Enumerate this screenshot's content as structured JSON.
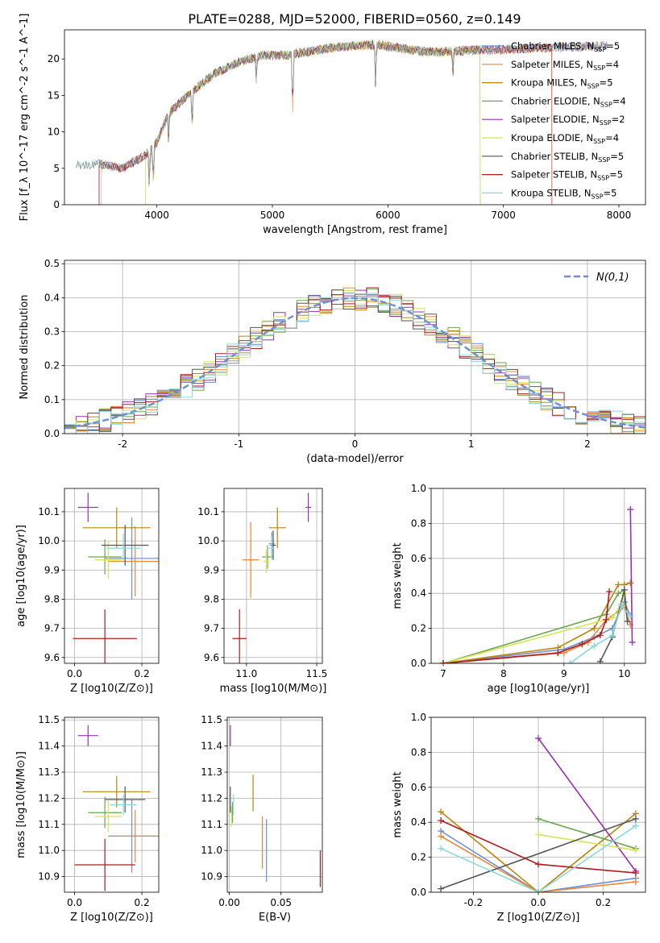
{
  "figure": {
    "title": "PLATE=0288, MJD=52000, FIBERID=0560, z=0.149"
  },
  "models": [
    {
      "name": "Chabrier MILES",
      "nssp": "5",
      "color": "#6b8ed6"
    },
    {
      "name": "Salpeter MILES",
      "nssp": "4",
      "color": "#ee8533"
    },
    {
      "name": "Kroupa MILES",
      "nssp": "5",
      "color": "#b8860b"
    },
    {
      "name": "Chabrier ELODIE",
      "nssp": "4",
      "color": "#6aa84f"
    },
    {
      "name": "Salpeter ELODIE",
      "nssp": "2",
      "color": "#9b30b5"
    },
    {
      "name": "Kroupa ELODIE",
      "nssp": "4",
      "color": "#d7e356"
    },
    {
      "name": "Chabrier STELIB",
      "nssp": "5",
      "color": "#555555"
    },
    {
      "name": "Salpeter STELIB",
      "nssp": "5",
      "color": "#b01c1c"
    },
    {
      "name": "Kroupa STELIB",
      "nssp": "5",
      "color": "#8ad8de"
    }
  ],
  "chart_data": [
    {
      "id": "spectrum",
      "type": "line",
      "xlabel": "wavelength [Angstrom, rest frame]",
      "ylabel": "Flux [f_λ 10^-17 erg cm^-2 s^-1 A^-1]",
      "xlim": [
        3200,
        8230
      ],
      "ylim": [
        0,
        24
      ],
      "xticks": [
        4000,
        5000,
        6000,
        7000,
        8000
      ],
      "yticks": [
        0,
        5,
        10,
        15,
        20
      ],
      "legend": "right",
      "continuum": {
        "x": [
          3300,
          3500,
          3700,
          3900,
          4000,
          4100,
          4300,
          4500,
          4700,
          4900,
          5100,
          5300,
          5500,
          5700,
          5900,
          6100,
          6300,
          6500,
          6700,
          7000,
          7300,
          7500,
          7700,
          7900
        ],
        "y": [
          5.3,
          5.6,
          5.0,
          6.8,
          8.5,
          12.5,
          15.5,
          18.0,
          19.5,
          20.5,
          20.5,
          21.0,
          21.5,
          21.8,
          22.0,
          21.5,
          21.0,
          21.0,
          21.2,
          21.3,
          21.5,
          21.6,
          21.7,
          21.8
        ]
      },
      "absorption": [
        {
          "x": 3934,
          "y": 2.5
        },
        {
          "x": 3969,
          "y": 3.0
        },
        {
          "x": 4101,
          "y": 9.0
        },
        {
          "x": 4305,
          "y": 11.0
        },
        {
          "x": 4861,
          "y": 17.0
        },
        {
          "x": 5176,
          "y": 12.5
        },
        {
          "x": 5893,
          "y": 16.5
        },
        {
          "x": 6563,
          "y": 18.0
        }
      ]
    },
    {
      "id": "residuals",
      "type": "histogram",
      "xlabel": "(data-model)/error",
      "ylabel": "Normed distribution",
      "xlim": [
        -2.5,
        2.5
      ],
      "ylim": [
        0,
        0.51
      ],
      "xticks": [
        -2,
        -1,
        0,
        1,
        2
      ],
      "yticks": [
        0.0,
        0.1,
        0.2,
        0.3,
        0.4,
        0.5
      ],
      "legend": "top-right",
      "reference": {
        "name": "N(0,1)",
        "mean": 0,
        "sigma": 1,
        "color": "#6b8ed6"
      },
      "bin_width": 0.1
    },
    {
      "id": "age_vs_Z",
      "type": "errorbar",
      "xlabel": "Z [log10(Z/Z⊙)]",
      "ylabel": "age [log10(age/yr)]",
      "xlim": [
        -0.03,
        0.25
      ],
      "ylim": [
        9.58,
        10.18
      ],
      "xticks": [
        0.0,
        0.2
      ],
      "yticks": [
        9.6,
        9.7,
        9.8,
        9.9,
        10.0,
        10.1
      ],
      "points": [
        {
          "model": 0,
          "x": 0.17,
          "y": 9.94,
          "xerr": 0.08,
          "yerr": 0.14
        },
        {
          "model": 1,
          "x": 0.18,
          "y": 9.93,
          "xerr": 0.08,
          "yerr": 0.12
        },
        {
          "model": 2,
          "x": 0.125,
          "y": 10.045,
          "xerr": 0.1,
          "yerr": 0.07
        },
        {
          "model": 3,
          "x": 0.09,
          "y": 9.945,
          "xerr": 0.05,
          "yerr": 0.06
        },
        {
          "model": 4,
          "x": 0.04,
          "y": 10.115,
          "xerr": 0.03,
          "yerr": 0.05
        },
        {
          "model": 5,
          "x": 0.1,
          "y": 9.935,
          "xerr": 0.04,
          "yerr": 0.065
        },
        {
          "model": 6,
          "x": 0.15,
          "y": 9.985,
          "xerr": 0.07,
          "yerr": 0.07
        },
        {
          "model": 7,
          "x": 0.09,
          "y": 9.665,
          "xerr": 0.095,
          "yerr": 0.1
        },
        {
          "model": 8,
          "x": 0.145,
          "y": 9.975,
          "xerr": 0.05,
          "yerr": 0.05
        }
      ]
    },
    {
      "id": "age_vs_mass",
      "type": "errorbar",
      "xlabel": "mass [log10(M/M⊙)]",
      "ylabel": "",
      "xlim": [
        10.84,
        11.54
      ],
      "ylim": [
        9.58,
        10.18
      ],
      "xticks": [
        11.0,
        11.5
      ],
      "yticks": [
        9.6,
        9.7,
        9.8,
        9.9,
        10.0,
        10.1
      ],
      "points": [
        {
          "model": 0,
          "x": 11.18,
          "y": 9.99,
          "xerr": 0.02,
          "yerr": 0.04
        },
        {
          "model": 1,
          "x": 11.03,
          "y": 9.935,
          "xerr": 0.06,
          "yerr": 0.13
        },
        {
          "model": 2,
          "x": 11.22,
          "y": 10.045,
          "xerr": 0.06,
          "yerr": 0.07
        },
        {
          "model": 3,
          "x": 11.15,
          "y": 9.945,
          "xerr": 0.04,
          "yerr": 0.04
        },
        {
          "model": 4,
          "x": 11.44,
          "y": 10.115,
          "xerr": 0.02,
          "yerr": 0.05
        },
        {
          "model": 5,
          "x": 11.14,
          "y": 9.93,
          "xerr": 0.02,
          "yerr": 0.04
        },
        {
          "model": 6,
          "x": 11.19,
          "y": 9.985,
          "xerr": 0.02,
          "yerr": 0.05
        },
        {
          "model": 7,
          "x": 10.95,
          "y": 9.665,
          "xerr": 0.05,
          "yerr": 0.1
        },
        {
          "model": 8,
          "x": 11.18,
          "y": 9.975,
          "xerr": 0.02,
          "yerr": 0.04
        }
      ]
    },
    {
      "id": "weight_vs_age",
      "type": "line",
      "xlabel": "age [log10(age/yr)]",
      "ylabel": "mass weight",
      "xlim": [
        6.8,
        10.35
      ],
      "ylim": [
        0,
        1.0
      ],
      "xticks": [
        7,
        8,
        9,
        10
      ],
      "yticks": [
        0.0,
        0.2,
        0.4,
        0.6,
        0.8,
        1.0
      ],
      "series": [
        {
          "model": 0,
          "x": [
            7.0,
            9.0,
            9.5,
            9.8,
            10.0,
            10.1
          ],
          "y": [
            0.0,
            0.08,
            0.15,
            0.2,
            0.35,
            0.27
          ]
        },
        {
          "model": 1,
          "x": [
            7.0,
            9.0,
            9.4,
            9.7,
            10.0,
            10.1
          ],
          "y": [
            0.0,
            0.06,
            0.12,
            0.25,
            0.32,
            0.22
          ]
        },
        {
          "model": 2,
          "x": [
            7.0,
            8.9,
            9.5,
            9.9,
            10.0,
            10.1
          ],
          "y": [
            0.0,
            0.09,
            0.2,
            0.45,
            0.45,
            0.46
          ]
        },
        {
          "model": 3,
          "x": [
            7.0,
            9.7,
            9.9,
            10.0
          ],
          "y": [
            0.0,
            0.28,
            0.4,
            0.42
          ]
        },
        {
          "model": 4,
          "x": [
            10.1,
            10.13
          ],
          "y": [
            0.88,
            0.12
          ]
        },
        {
          "model": 5,
          "x": [
            7.0,
            9.8,
            9.95,
            10.0
          ],
          "y": [
            0.0,
            0.26,
            0.34,
            0.4
          ]
        },
        {
          "model": 6,
          "x": [
            9.6,
            9.8,
            10.0,
            10.05
          ],
          "y": [
            0.01,
            0.15,
            0.42,
            0.24
          ]
        },
        {
          "model": 7,
          "x": [
            7.0,
            8.9,
            9.3,
            9.6,
            9.7,
            9.75
          ],
          "y": [
            0.0,
            0.06,
            0.11,
            0.16,
            0.25,
            0.41
          ]
        },
        {
          "model": 8,
          "x": [
            9.1,
            9.5,
            9.8,
            9.95,
            10.1
          ],
          "y": [
            0.0,
            0.1,
            0.16,
            0.33,
            0.27
          ]
        }
      ]
    },
    {
      "id": "mass_vs_Z",
      "type": "errorbar",
      "xlabel": "Z [log10(Z/Z⊙)]",
      "ylabel": "mass [log10(M/M⊙)]",
      "xlim": [
        -0.03,
        0.25
      ],
      "ylim": [
        10.84,
        11.51
      ],
      "xticks": [
        0.0,
        0.2
      ],
      "yticks": [
        10.9,
        11.0,
        11.1,
        11.2,
        11.3,
        11.4,
        11.5
      ],
      "points": [
        {
          "model": 0,
          "x": 0.17,
          "y": 11.055,
          "xerr": 0.07,
          "yerr": 0.14
        },
        {
          "model": 1,
          "x": 0.18,
          "y": 11.055,
          "xerr": 0.07,
          "yerr": 0.1
        },
        {
          "model": 2,
          "x": 0.125,
          "y": 11.225,
          "xerr": 0.1,
          "yerr": 0.06
        },
        {
          "model": 3,
          "x": 0.09,
          "y": 11.145,
          "xerr": 0.05,
          "yerr": 0.06
        },
        {
          "model": 4,
          "x": 0.04,
          "y": 11.44,
          "xerr": 0.03,
          "yerr": 0.04
        },
        {
          "model": 5,
          "x": 0.1,
          "y": 11.13,
          "xerr": 0.04,
          "yerr": 0.06
        },
        {
          "model": 6,
          "x": 0.15,
          "y": 11.195,
          "xerr": 0.06,
          "yerr": 0.05
        },
        {
          "model": 7,
          "x": 0.09,
          "y": 10.945,
          "xerr": 0.09,
          "yerr": 0.1
        },
        {
          "model": 8,
          "x": 0.145,
          "y": 11.175,
          "xerr": 0.04,
          "yerr": 0.04
        }
      ]
    },
    {
      "id": "mass_vs_ebv",
      "type": "errorbar",
      "xlabel": "E(B-V)",
      "ylabel": "",
      "xlim": [
        -0.002,
        0.09
      ],
      "ylim": [
        10.84,
        11.51
      ],
      "xticks": [
        0.0,
        0.05
      ],
      "yticks": [
        10.9,
        11.0,
        11.1,
        11.2,
        11.3,
        11.4,
        11.5
      ],
      "points": [
        {
          "model": 0,
          "x": 0.036,
          "y": 11.0,
          "xerr": 0,
          "yerr": 0.12
        },
        {
          "model": 1,
          "x": 0.032,
          "y": 11.03,
          "xerr": 0,
          "yerr": 0.1
        },
        {
          "model": 2,
          "x": 0.023,
          "y": 11.22,
          "xerr": 0,
          "yerr": 0.07
        },
        {
          "model": 3,
          "x": 0.003,
          "y": 11.145,
          "xerr": 0,
          "yerr": 0.04
        },
        {
          "model": 4,
          "x": 0.001,
          "y": 11.44,
          "xerr": 0,
          "yerr": 0.04
        },
        {
          "model": 5,
          "x": 0.002,
          "y": 11.13,
          "xerr": 0,
          "yerr": 0.04
        },
        {
          "model": 6,
          "x": 0.001,
          "y": 11.195,
          "xerr": 0,
          "yerr": 0.05
        },
        {
          "model": 7,
          "x": 0.088,
          "y": 10.93,
          "xerr": 0,
          "yerr": 0.07
        },
        {
          "model": 8,
          "x": 0.004,
          "y": 11.175,
          "xerr": 0,
          "yerr": 0.04
        }
      ]
    },
    {
      "id": "weight_vs_Z",
      "type": "line",
      "xlabel": "Z [log10(Z/Z⊙)]",
      "ylabel": "mass weight",
      "xlim": [
        -0.33,
        0.33
      ],
      "ylim": [
        0,
        1.0
      ],
      "xticks": [
        -0.2,
        0.0,
        0.2
      ],
      "yticks": [
        0.0,
        0.2,
        0.4,
        0.6,
        0.8,
        1.0
      ],
      "series": [
        {
          "model": 0,
          "x": [
            -0.3,
            0.0,
            0.3
          ],
          "y": [
            0.35,
            0.0,
            0.08
          ]
        },
        {
          "model": 1,
          "x": [
            -0.3,
            0.0,
            0.3
          ],
          "y": [
            0.32,
            0.0,
            0.06
          ]
        },
        {
          "model": 2,
          "x": [
            -0.3,
            0.0,
            0.3
          ],
          "y": [
            0.46,
            0.0,
            0.45
          ]
        },
        {
          "model": 3,
          "x": [
            0.0,
            0.3
          ],
          "y": [
            0.42,
            0.25
          ]
        },
        {
          "model": 4,
          "x": [
            0.0,
            0.3
          ],
          "y": [
            0.88,
            0.12
          ]
        },
        {
          "model": 5,
          "x": [
            0.0,
            0.3
          ],
          "y": [
            0.33,
            0.24
          ]
        },
        {
          "model": 6,
          "x": [
            -0.3,
            0.3
          ],
          "y": [
            0.02,
            0.42
          ]
        },
        {
          "model": 7,
          "x": [
            -0.3,
            0.0,
            0.3
          ],
          "y": [
            0.41,
            0.16,
            0.11
          ]
        },
        {
          "model": 8,
          "x": [
            -0.3,
            0.0,
            0.3
          ],
          "y": [
            0.25,
            0.0,
            0.38
          ]
        }
      ]
    }
  ]
}
